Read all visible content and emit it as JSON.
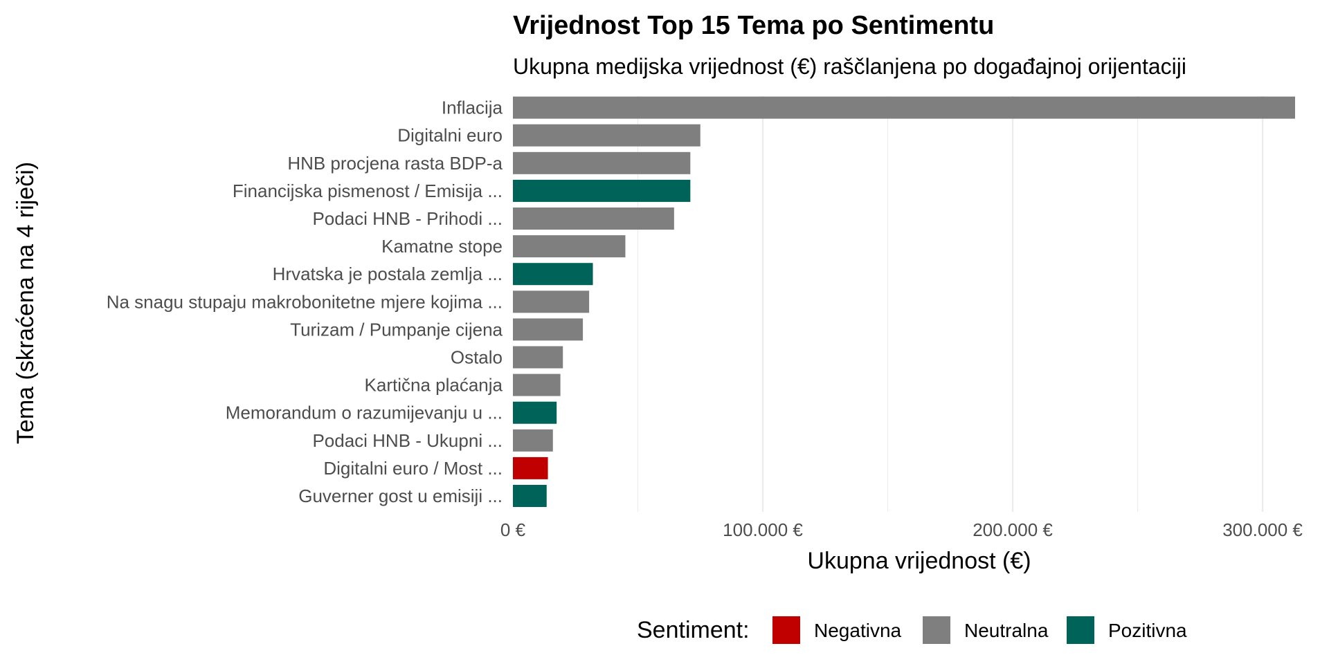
{
  "chart_data": {
    "type": "bar",
    "orientation": "horizontal",
    "title": "Vrijednost Top 15 Tema po Sentimentu",
    "subtitle": "Ukupna medijska vrijednost (€) raščlanjena po događajnoj orijentaciji",
    "xlabel": "Ukupna vrijednost (€)",
    "ylabel": "Tema (skraćena na 4 riječi)",
    "xlim": [
      0,
      313000
    ],
    "x_ticks": [
      {
        "value": 0,
        "label": "0 €"
      },
      {
        "value": 100000,
        "label": "100.000 €"
      },
      {
        "value": 200000,
        "label": "200.000 €"
      },
      {
        "value": 300000,
        "label": "300.000 €"
      }
    ],
    "grid": true,
    "legend": {
      "title": "Sentiment:",
      "position": "bottom",
      "entries": [
        {
          "name": "Negativna",
          "color": "#c00000"
        },
        {
          "name": "Neutralna",
          "color": "#7f7f7f"
        },
        {
          "name": "Pozitivna",
          "color": "#00635a"
        }
      ]
    },
    "bars": [
      {
        "category": "Inflacija",
        "value": 313000,
        "sentiment": "Neutralna"
      },
      {
        "category": "Digitalni euro",
        "value": 75000,
        "sentiment": "Neutralna"
      },
      {
        "category": "HNB procjena rasta BDP-a",
        "value": 71000,
        "sentiment": "Neutralna"
      },
      {
        "category": "Financijska pismenost / Emisija ...",
        "value": 71000,
        "sentiment": "Pozitivna"
      },
      {
        "category": "Podaci HNB - Prihodi ...",
        "value": 64500,
        "sentiment": "Neutralna"
      },
      {
        "category": "Kamatne stope",
        "value": 45000,
        "sentiment": "Neutralna"
      },
      {
        "category": "Hrvatska je postala zemlja ...",
        "value": 32000,
        "sentiment": "Pozitivna"
      },
      {
        "category": "Na snagu stupaju makrobonitetne mjere kojima ...",
        "value": 30500,
        "sentiment": "Neutralna"
      },
      {
        "category": "Turizam / Pumpanje cijena",
        "value": 28000,
        "sentiment": "Neutralna"
      },
      {
        "category": "Ostalo",
        "value": 20000,
        "sentiment": "Neutralna"
      },
      {
        "category": "Kartična plaćanja",
        "value": 19000,
        "sentiment": "Neutralna"
      },
      {
        "category": "Memorandum o razumijevanju u ...",
        "value": 17500,
        "sentiment": "Pozitivna"
      },
      {
        "category": "Podaci HNB - Ukupni ...",
        "value": 16000,
        "sentiment": "Neutralna"
      },
      {
        "category": "Digitalni euro / Most ...",
        "value": 14000,
        "sentiment": "Negativna"
      },
      {
        "category": "Guverner gost u emisiji ...",
        "value": 13500,
        "sentiment": "Pozitivna"
      }
    ]
  }
}
